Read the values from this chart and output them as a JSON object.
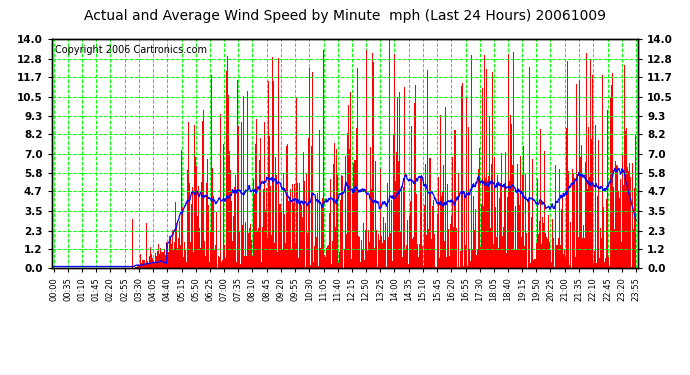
{
  "title": "Actual and Average Wind Speed by Minute  mph (Last 24 Hours) 20061009",
  "copyright": "Copyright 2006 Cartronics.com",
  "yticks": [
    0.0,
    1.2,
    2.3,
    3.5,
    4.7,
    5.8,
    7.0,
    8.2,
    9.3,
    10.5,
    11.7,
    12.8,
    14.0
  ],
  "ylim": [
    0.0,
    14.0
  ],
  "bar_color": "#FF0000",
  "line_color": "#0000FF",
  "grid_color": "#00FF00",
  "bg_color": "#FFFFFF",
  "title_fontsize": 10,
  "copyright_fontsize": 7,
  "n_minutes": 1440,
  "xtick_labels": [
    "00:00",
    "00:35",
    "01:10",
    "01:45",
    "02:20",
    "02:55",
    "03:30",
    "04:05",
    "04:40",
    "05:15",
    "05:50",
    "06:25",
    "07:00",
    "07:35",
    "08:10",
    "08:45",
    "09:20",
    "09:55",
    "10:30",
    "11:05",
    "11:40",
    "12:15",
    "12:50",
    "13:25",
    "14:00",
    "14:35",
    "15:10",
    "15:45",
    "16:20",
    "16:55",
    "17:30",
    "18:05",
    "18:40",
    "19:15",
    "19:50",
    "20:25",
    "21:00",
    "21:35",
    "22:10",
    "22:45",
    "23:20",
    "23:55"
  ]
}
